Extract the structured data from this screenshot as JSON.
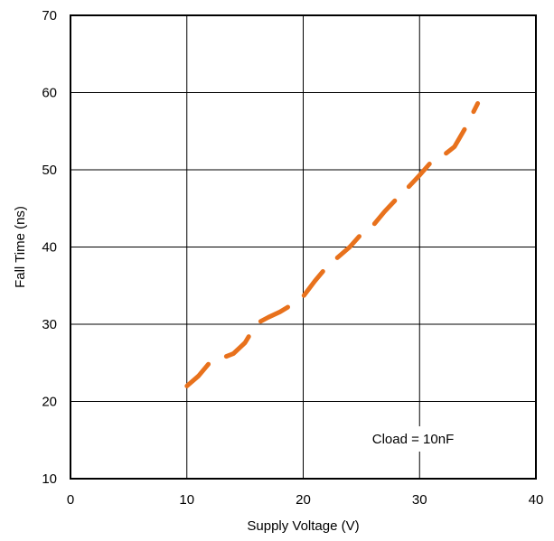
{
  "chart_data": {
    "type": "line",
    "title": "",
    "xlabel": "Supply Voltage (V)",
    "ylabel": "Fall Time (ns)",
    "xlim": [
      0,
      40
    ],
    "ylim": [
      10,
      70
    ],
    "x_ticks": [
      0,
      10,
      20,
      30,
      40
    ],
    "y_ticks": [
      10,
      20,
      30,
      40,
      50,
      60,
      70
    ],
    "grid": true,
    "legend": "none",
    "annotation": "Cload = 10nF",
    "series": [
      {
        "line_style": "dashed",
        "color": "#E8711C",
        "x": [
          10,
          11,
          12,
          13,
          14,
          15,
          16,
          17,
          18,
          19,
          20,
          21,
          22,
          23,
          24,
          25,
          26,
          27,
          28,
          29,
          30,
          31,
          32,
          33,
          34,
          35
        ],
        "y": [
          22,
          23.3,
          25.1,
          25.6,
          26.2,
          27.6,
          30.1,
          30.9,
          31.6,
          32.5,
          33.6,
          35.6,
          37.4,
          38.7,
          40.0,
          41.7,
          42.8,
          44.6,
          46.2,
          47.7,
          49.3,
          51.0,
          51.8,
          53.0,
          55.6,
          58.6
        ]
      }
    ]
  }
}
